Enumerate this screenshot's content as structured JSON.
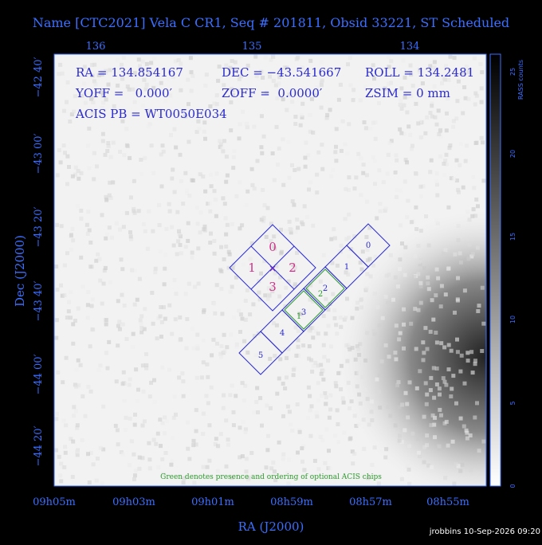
{
  "header": {
    "title": "Name [CTC2021] Vela C CR1, Seq # 201811, Obsid 33221, ST Scheduled"
  },
  "top_axis": {
    "labels": [
      "136",
      "135",
      "134"
    ]
  },
  "info": {
    "ra": "RA = 134.854167",
    "dec": "DEC = −43.541667",
    "roll": "ROLL = 134.2481",
    "yoff": "YOFF =   0.000′",
    "zoff": "ZOFF =  0.0000′",
    "zsim": "ZSIM = 0 mm",
    "acis_pb": "ACIS PB = WT0050E034"
  },
  "left_axis": {
    "title": "Dec (J2000)",
    "labels": [
      "−42 40′",
      "−43 00′",
      "−43 20′",
      "−43 40′",
      "−44 00′",
      "−44 20′"
    ]
  },
  "bottom_axis": {
    "title": "RA (J2000)",
    "labels": [
      "09h05m",
      "09h03m",
      "09h01m",
      "08h59m",
      "08h57m",
      "08h55m"
    ]
  },
  "colorbar": {
    "title": "RASS counts",
    "labels": [
      "0",
      "5",
      "10",
      "15",
      "20",
      "25"
    ]
  },
  "hrc": {
    "labels": [
      "0",
      "1",
      "2",
      "3"
    ]
  },
  "acis": {
    "labels": [
      "0",
      "1",
      "2",
      "3",
      "4",
      "5"
    ],
    "optional": [
      "1",
      "2"
    ]
  },
  "note": "Green denotes presence and ordering of optional ACIS chips",
  "footer": "jrobbins 10-Sep-2026 09:20"
}
